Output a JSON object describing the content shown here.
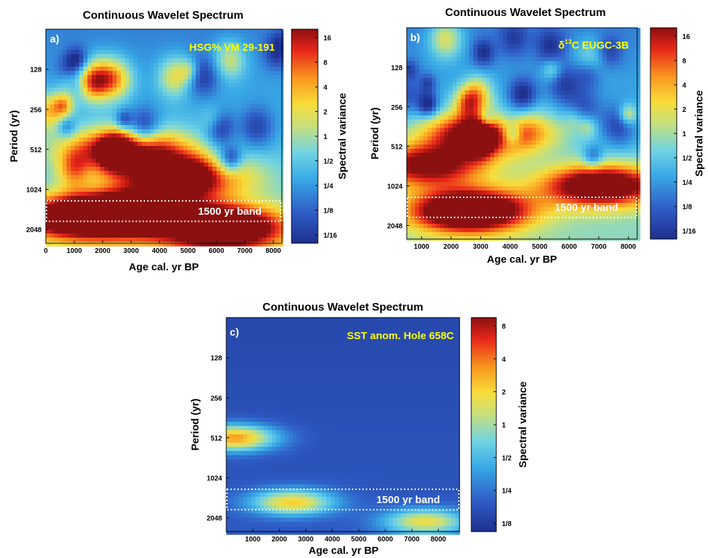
{
  "chart_data": [
    {
      "type": "heatmap",
      "panel_label": "a)",
      "title": "Continuous Wavelet Spectrum",
      "annotation": "HSG% VM 29-191",
      "xlabel": "Age cal. yr BP",
      "ylabel": "Period (yr)",
      "colorbar_label": "Spectral variance",
      "x_ticks": [
        0,
        1000,
        2000,
        3000,
        4000,
        5000,
        6000,
        7000,
        8000
      ],
      "xlim": [
        0,
        8300
      ],
      "y_ticks": [
        "128",
        "256",
        "512",
        "1024",
        "2048"
      ],
      "y_tick_values": [
        128,
        256,
        512,
        1024,
        2048
      ],
      "y_scale": "log2",
      "ylim": [
        64,
        2600
      ],
      "colorbar_ticks": [
        "16",
        "8",
        "4",
        "2",
        "1",
        "1/2",
        "1/4",
        "1/8",
        "1/16"
      ],
      "colorbar_range": [
        0.04,
        32
      ],
      "band_label": "1500 yr band",
      "band_period_range": [
        1250,
        1780
      ],
      "seed": 11,
      "features": [
        {
          "x": 6200,
          "period": 1900,
          "level": 1.0
        },
        {
          "x": 3000,
          "period": 1500,
          "level": 0.9
        },
        {
          "x": 4800,
          "period": 800,
          "level": 0.85
        },
        {
          "x": 2800,
          "period": 500,
          "level": 0.75
        },
        {
          "x": 1000,
          "period": 1600,
          "level": 0.75
        }
      ]
    },
    {
      "type": "heatmap",
      "panel_label": "b)",
      "title": "Continuous Wavelet Spectrum",
      "annotation_prefix": "δ",
      "annotation_sup": "13",
      "annotation_rest": "C EUGC-3B",
      "xlabel": "Age cal. yr BP",
      "ylabel": "Period (yr)",
      "colorbar_label": "Spectral variance",
      "x_ticks": [
        1000,
        2000,
        3000,
        4000,
        5000,
        6000,
        7000,
        8000
      ],
      "xlim": [
        500,
        8300
      ],
      "y_ticks": [
        "128",
        "256",
        "512",
        "1024",
        "2048"
      ],
      "y_tick_values": [
        128,
        256,
        512,
        1024,
        2048
      ],
      "y_scale": "log2",
      "ylim": [
        64,
        2600
      ],
      "colorbar_ticks": [
        "16",
        "8",
        "4",
        "2",
        "1",
        "1/2",
        "1/4",
        "1/8",
        "1/16"
      ],
      "colorbar_range": [
        0.04,
        32
      ],
      "band_label": "1500 yr band",
      "band_period_range": [
        1250,
        1780
      ],
      "seed": 29,
      "features": [
        {
          "x": 2600,
          "period": 1550,
          "level": 1.0
        },
        {
          "x": 3200,
          "period": 400,
          "level": 0.9
        },
        {
          "x": 7000,
          "period": 1000,
          "level": 0.85
        },
        {
          "x": 1200,
          "period": 700,
          "level": 0.7
        }
      ]
    },
    {
      "type": "heatmap",
      "panel_label": "c)",
      "title": "Continuous Wavelet Spectrum",
      "annotation": "SST anom. Hole 658C",
      "xlabel": "Age cal. yr BP",
      "ylabel": "Period (yr)",
      "colorbar_label": "Spectral variance",
      "x_ticks": [
        1000,
        2000,
        3000,
        4000,
        5000,
        6000,
        7000,
        8000
      ],
      "xlim": [
        0,
        8800
      ],
      "y_ticks": [
        "128",
        "256",
        "512",
        "1024",
        "2048"
      ],
      "y_tick_values": [
        128,
        256,
        512,
        1024,
        2048
      ],
      "y_scale": "log2",
      "ylim": [
        64,
        2600
      ],
      "colorbar_ticks": [
        "8",
        "4",
        "2",
        "1",
        "1/2",
        "1/4",
        "1/8"
      ],
      "colorbar_range": [
        0.125,
        8
      ],
      "band_label": "1500 yr band",
      "band_period_range": [
        1250,
        1780
      ],
      "seed": 0,
      "features": [
        {
          "x": 300,
          "period": 500,
          "level": 0.65
        },
        {
          "x": 2500,
          "period": 1500,
          "level": 0.55
        },
        {
          "x": 7500,
          "period": 2100,
          "level": 0.5
        }
      ]
    }
  ]
}
